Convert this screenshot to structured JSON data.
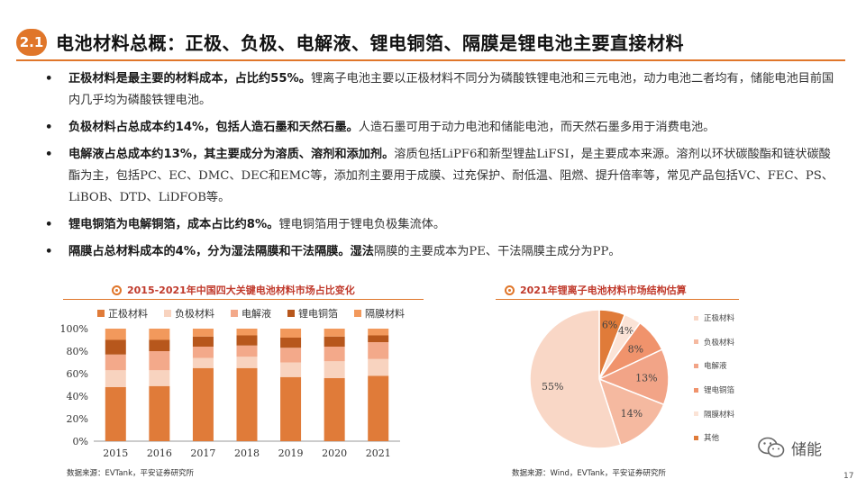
{
  "header": {
    "section_number": "2.1",
    "title": "电池材料总概：正极、负极、电解液、锂电铜箔、隔膜是锂电池主要直接材料"
  },
  "bullets": [
    {
      "bold": "正极材料是最主要的材料成本，占比约55%。",
      "text": "锂离子电池主要以正极材料不同分为磷酸铁锂电池和三元电池，动力电池二者均有，储能电池目前国内几乎均为磷酸铁锂电池。"
    },
    {
      "bold": "负极材料占总成本约14%，包括人造石墨和天然石墨。",
      "text": "人造石墨可用于动力电池和储能电池，而天然石墨多用于消费电池。"
    },
    {
      "bold": "电解液占总成本约13%，其主要成分为溶质、溶剂和添加剂。",
      "text": "溶质包括LiPF6和新型锂盐LiFSI，是主要成本来源。溶剂以环状碳酸酯和链状碳酸酯为主，包括PC、EC、DMC、DEC和EMC等，添加剂主要用于成膜、过充保护、耐低温、阻燃、提升倍率等，常见产品包括VC、FEC、PS、LiBOB、DTD、LiDFOB等。"
    },
    {
      "bold": "锂电铜箔为电解铜箔，成本占比约8%。",
      "text": "锂电铜箔用于锂电负极集流体。"
    },
    {
      "bold": "隔膜占总材料成本的4%，分为湿法隔膜和干法隔膜。湿法",
      "text": "隔膜的主要成本为PE、干法隔膜主成分为PP。"
    }
  ],
  "bar_section": {
    "title": "2015-2021年中国四大关键电池材料市场占比变化",
    "source": "数据来源：EVTank，平安证券研究所"
  },
  "pie_section": {
    "title": "2021年锂离子电池材料市场结构估算",
    "source": "数据来源：Wind，EVTank，平安证券研究所"
  },
  "chart_data": [
    {
      "type": "bar",
      "stacked": true,
      "categories": [
        "2015",
        "2016",
        "2017",
        "2018",
        "2019",
        "2020",
        "2021"
      ],
      "y_ticks": [
        "0%",
        "20%",
        "40%",
        "60%",
        "80%",
        "100%"
      ],
      "ylim": [
        0,
        100
      ],
      "legend_position": "top",
      "series": [
        {
          "name": "正极材料",
          "color": "#e07b39",
          "values": [
            48,
            49,
            65,
            65,
            57,
            56,
            58
          ]
        },
        {
          "name": "负极材料",
          "color": "#f8d3bf",
          "values": [
            15,
            14,
            9,
            10,
            13,
            15,
            15
          ]
        },
        {
          "name": "电解液",
          "color": "#f3a98a",
          "values": [
            14,
            17,
            10,
            10,
            13,
            13,
            15
          ]
        },
        {
          "name": "锂电铜箔",
          "color": "#b7571c",
          "values": [
            13,
            10,
            9,
            9,
            9,
            9,
            6
          ]
        },
        {
          "name": "隔膜材料",
          "color": "#f2995c",
          "values": [
            10,
            10,
            7,
            6,
            8,
            7,
            6
          ]
        }
      ]
    },
    {
      "type": "pie",
      "legend_position": "right",
      "slices": [
        {
          "name": "正极材料",
          "value": 55,
          "label": "55%",
          "color": "#f9d7c6"
        },
        {
          "name": "负极材料",
          "value": 14,
          "label": "14%",
          "color": "#f5b9a0"
        },
        {
          "name": "电解液",
          "value": 13,
          "label": "13%",
          "color": "#f2a487"
        },
        {
          "name": "锂电铜箔",
          "value": 8,
          "label": "8%",
          "color": "#f0936c"
        },
        {
          "name": "隔膜材料",
          "value": 4,
          "label": "4%",
          "color": "#fbe3d6"
        },
        {
          "name": "其他",
          "value": 6,
          "label": "6%",
          "color": "#e07b39"
        }
      ]
    }
  ],
  "brand": {
    "name": "储能",
    "icon": "wechat-icon"
  },
  "page_number": "17"
}
